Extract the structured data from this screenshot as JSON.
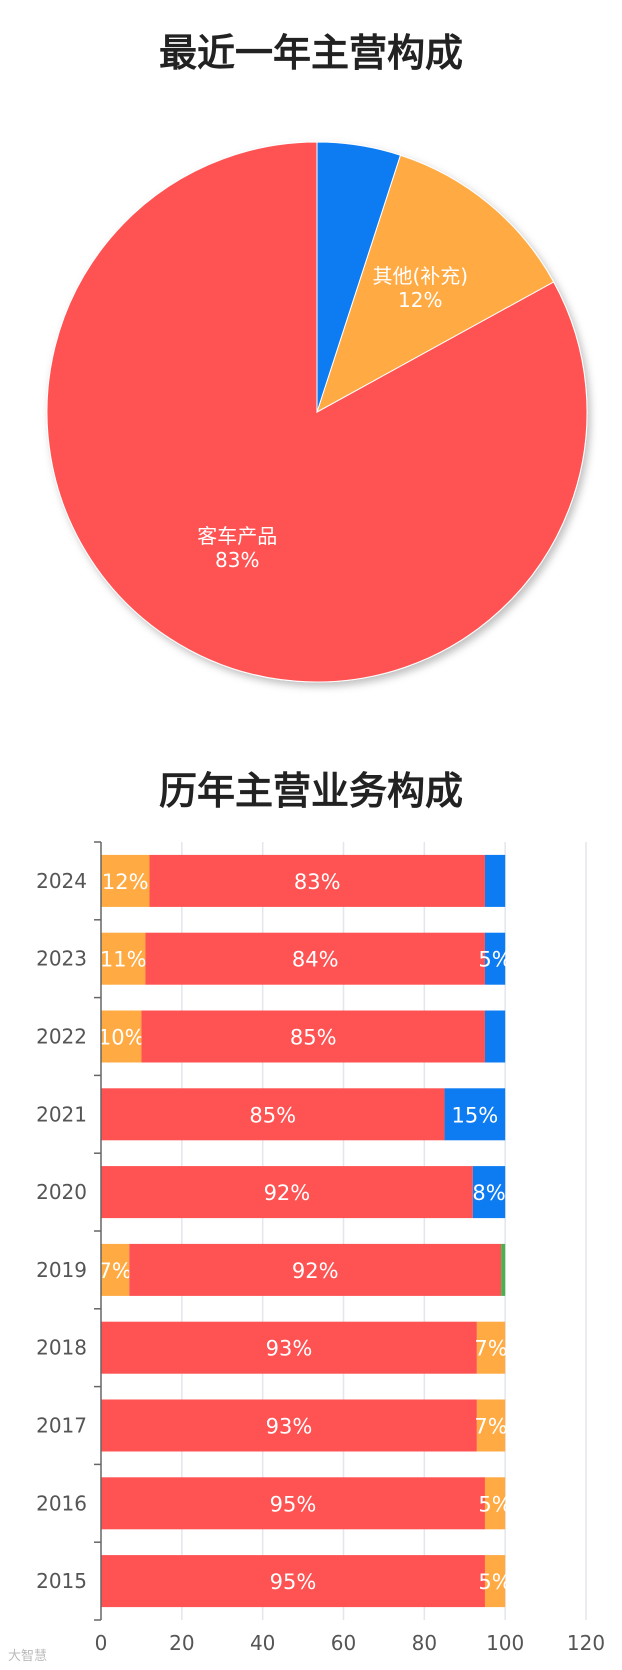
{
  "colors": {
    "red": "#ff5252",
    "orange": "#ffaa42",
    "blue": "#0d7cf2",
    "green": "#4caf50",
    "grid": "#e3e6ee",
    "axis": "#666666",
    "text": "#555555"
  },
  "watermark": "大智慧",
  "chart_data": [
    {
      "type": "pie",
      "title": "最近一年主营构成",
      "slices": [
        {
          "label": "客车产品",
          "value": 83,
          "display": "83%",
          "color": "#ff5252"
        },
        {
          "label": "其他(补充)",
          "value": 12,
          "display": "12%",
          "color": "#ffaa42"
        },
        {
          "label": "",
          "value": 5,
          "display": "",
          "color": "#0d7cf2"
        }
      ]
    },
    {
      "type": "bar",
      "orientation": "horizontal",
      "stacked": true,
      "title": "历年主营业务构成",
      "categories": [
        "2024",
        "2023",
        "2022",
        "2021",
        "2020",
        "2019",
        "2018",
        "2017",
        "2016",
        "2015"
      ],
      "xlim": [
        0,
        120
      ],
      "xticks": [
        0,
        20,
        40,
        60,
        80,
        100,
        120
      ],
      "grid": true,
      "rows": [
        [
          {
            "value": 12,
            "label": "12%",
            "color": "#ffaa42"
          },
          {
            "value": 83,
            "label": "83%",
            "color": "#ff5252"
          },
          {
            "value": 5,
            "label": "",
            "color": "#0d7cf2"
          }
        ],
        [
          {
            "value": 11,
            "label": "11%",
            "color": "#ffaa42"
          },
          {
            "value": 84,
            "label": "84%",
            "color": "#ff5252"
          },
          {
            "value": 5,
            "label": "5%",
            "color": "#0d7cf2"
          }
        ],
        [
          {
            "value": 10,
            "label": "10%",
            "color": "#ffaa42"
          },
          {
            "value": 85,
            "label": "85%",
            "color": "#ff5252"
          },
          {
            "value": 5,
            "label": "",
            "color": "#0d7cf2"
          }
        ],
        [
          {
            "value": 85,
            "label": "85%",
            "color": "#ff5252"
          },
          {
            "value": 15,
            "label": "15%",
            "color": "#0d7cf2"
          }
        ],
        [
          {
            "value": 92,
            "label": "92%",
            "color": "#ff5252"
          },
          {
            "value": 8,
            "label": "8%",
            "color": "#0d7cf2"
          }
        ],
        [
          {
            "value": 7,
            "label": "7%",
            "color": "#ffaa42"
          },
          {
            "value": 92,
            "label": "92%",
            "color": "#ff5252"
          },
          {
            "value": 1,
            "label": "",
            "color": "#4caf50"
          }
        ],
        [
          {
            "value": 93,
            "label": "93%",
            "color": "#ff5252"
          },
          {
            "value": 7,
            "label": "7%",
            "color": "#ffaa42"
          }
        ],
        [
          {
            "value": 93,
            "label": "93%",
            "color": "#ff5252"
          },
          {
            "value": 7,
            "label": "7%",
            "color": "#ffaa42"
          }
        ],
        [
          {
            "value": 95,
            "label": "95%",
            "color": "#ff5252"
          },
          {
            "value": 5,
            "label": "5%",
            "color": "#ffaa42"
          }
        ],
        [
          {
            "value": 95,
            "label": "95%",
            "color": "#ff5252"
          },
          {
            "value": 5,
            "label": "5%",
            "color": "#ffaa42"
          }
        ]
      ]
    }
  ]
}
